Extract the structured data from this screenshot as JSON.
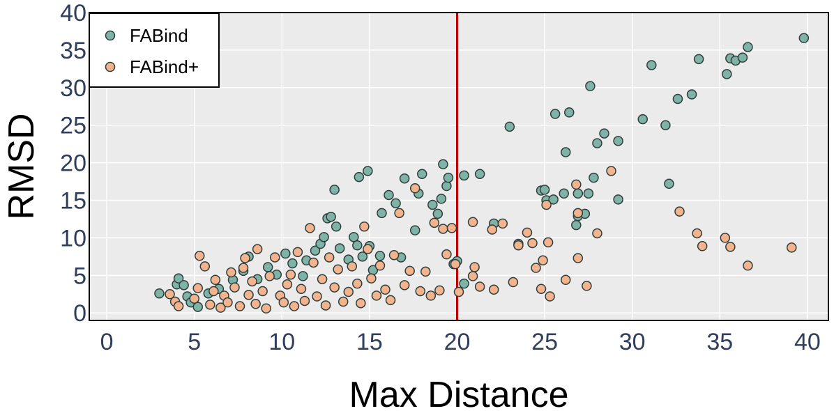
{
  "chart_data": {
    "type": "scatter",
    "xlabel": "Max Distance",
    "ylabel": "RMSD",
    "xlim": [
      -1,
      41.2
    ],
    "ylim": [
      -1,
      40
    ],
    "xticks": [
      0,
      5,
      10,
      15,
      20,
      25,
      30,
      35,
      40
    ],
    "yticks": [
      0,
      5,
      10,
      15,
      20,
      25,
      30,
      35,
      40
    ],
    "grid": true,
    "legend_position": "top-left",
    "vline": {
      "x": 20,
      "color": "#c00000"
    },
    "series": [
      {
        "name": "FABind",
        "color": "#7fb3a7",
        "points": [
          [
            3,
            2.6
          ],
          [
            4,
            3.8
          ],
          [
            4.1,
            4.6
          ],
          [
            4.4,
            3.7
          ],
          [
            4.6,
            2.2
          ],
          [
            4.8,
            1.4
          ],
          [
            5.2,
            0.8
          ],
          [
            5.8,
            2.6
          ],
          [
            6.4,
            3.2
          ],
          [
            7.2,
            4.4
          ],
          [
            7.8,
            5.6
          ],
          [
            8.1,
            7.5
          ],
          [
            8.6,
            4.5
          ],
          [
            9.2,
            6.1
          ],
          [
            9.7,
            5.1
          ],
          [
            10.2,
            7.9
          ],
          [
            10.6,
            6.6
          ],
          [
            11.2,
            4.9
          ],
          [
            11.4,
            7.0
          ],
          [
            11.9,
            8.3
          ],
          [
            12.2,
            9.2
          ],
          [
            12.4,
            10.1
          ],
          [
            12.6,
            12.6
          ],
          [
            12.8,
            12.8
          ],
          [
            13.1,
            11.5
          ],
          [
            13.3,
            8.6
          ],
          [
            13.8,
            7.1
          ],
          [
            14.1,
            10.1
          ],
          [
            14.3,
            9.0
          ],
          [
            14.6,
            7.5
          ],
          [
            15.0,
            8.9
          ],
          [
            15.2,
            5.7
          ],
          [
            15.6,
            7.6
          ],
          [
            13.0,
            16.4
          ],
          [
            14.4,
            18.1
          ],
          [
            14.9,
            18.9
          ],
          [
            15.7,
            13.3
          ],
          [
            16.1,
            15.7
          ],
          [
            16.5,
            14.6
          ],
          [
            16.8,
            7.4
          ],
          [
            17.0,
            17.9
          ],
          [
            17.6,
            11.0
          ],
          [
            17.8,
            15.9
          ],
          [
            18.0,
            18.5
          ],
          [
            18.6,
            14.4
          ],
          [
            18.9,
            13.2
          ],
          [
            19.1,
            15.2
          ],
          [
            19.2,
            19.8
          ],
          [
            19.4,
            16.9
          ],
          [
            19.5,
            18.0
          ],
          [
            19.8,
            6.5
          ],
          [
            20.4,
            3.9
          ],
          [
            20.0,
            6.9
          ],
          [
            20.4,
            18.3
          ],
          [
            21.3,
            18.5
          ],
          [
            22.1,
            11.9
          ],
          [
            23.0,
            24.8
          ],
          [
            23.5,
            9.2
          ],
          [
            24.8,
            16.3
          ],
          [
            25.0,
            16.4
          ],
          [
            25.1,
            15.0
          ],
          [
            25.5,
            15.1
          ],
          [
            25.6,
            26.5
          ],
          [
            26.1,
            15.9
          ],
          [
            26.2,
            21.4
          ],
          [
            26.4,
            26.7
          ],
          [
            26.9,
            12.9
          ],
          [
            26.8,
            11.7
          ],
          [
            26.9,
            15.9
          ],
          [
            27.3,
            13.2
          ],
          [
            27.5,
            15.9
          ],
          [
            27.6,
            30.2
          ],
          [
            27.8,
            18.0
          ],
          [
            28.0,
            22.6
          ],
          [
            28.4,
            23.9
          ],
          [
            29.2,
            22.9
          ],
          [
            29.2,
            15.1
          ],
          [
            30.6,
            25.8
          ],
          [
            31.1,
            33.0
          ],
          [
            31.9,
            25.0
          ],
          [
            32.1,
            17.2
          ],
          [
            32.6,
            28.5
          ],
          [
            33.4,
            29.1
          ],
          [
            33.8,
            33.8
          ],
          [
            35.4,
            31.8
          ],
          [
            35.6,
            33.9
          ],
          [
            35.9,
            33.6
          ],
          [
            36.3,
            34.0
          ],
          [
            36.6,
            35.4
          ],
          [
            39.8,
            36.6
          ]
        ]
      },
      {
        "name": "FABind+",
        "color": "#f2b48e",
        "points": [
          [
            3.6,
            2.5
          ],
          [
            3.9,
            1.5
          ],
          [
            4.1,
            0.9
          ],
          [
            5.0,
            1.9
          ],
          [
            5.2,
            3.3
          ],
          [
            5.3,
            7.6
          ],
          [
            5.6,
            6.2
          ],
          [
            5.9,
            1.1
          ],
          [
            6.1,
            2.9
          ],
          [
            6.2,
            4.4
          ],
          [
            6.5,
            0.7
          ],
          [
            6.7,
            2.3
          ],
          [
            6.9,
            1.4
          ],
          [
            7.1,
            5.4
          ],
          [
            7.3,
            3.4
          ],
          [
            7.6,
            0.9
          ],
          [
            7.8,
            6.0
          ],
          [
            7.9,
            7.3
          ],
          [
            8.1,
            2.4
          ],
          [
            8.3,
            4.2
          ],
          [
            8.5,
            1.2
          ],
          [
            8.6,
            8.5
          ],
          [
            8.9,
            2.9
          ],
          [
            9.1,
            0.6
          ],
          [
            9.3,
            4.9
          ],
          [
            9.6,
            7.4
          ],
          [
            9.9,
            2.3
          ],
          [
            10.1,
            1.4
          ],
          [
            10.3,
            3.8
          ],
          [
            10.5,
            5.1
          ],
          [
            10.7,
            0.9
          ],
          [
            10.9,
            8.1
          ],
          [
            11.1,
            3.2
          ],
          [
            11.3,
            1.6
          ],
          [
            11.6,
            11.3
          ],
          [
            11.8,
            6.7
          ],
          [
            12.0,
            2.2
          ],
          [
            12.3,
            4.5
          ],
          [
            12.5,
            1.0
          ],
          [
            12.7,
            7.4
          ],
          [
            13.0,
            3.4
          ],
          [
            13.2,
            5.8
          ],
          [
            13.5,
            1.5
          ],
          [
            13.8,
            2.8
          ],
          [
            14.0,
            6.2
          ],
          [
            14.3,
            3.9
          ],
          [
            14.5,
            1.3
          ],
          [
            14.7,
            11.5
          ],
          [
            14.9,
            8.5
          ],
          [
            15.1,
            4.6
          ],
          [
            15.4,
            2.3
          ],
          [
            15.6,
            6.3
          ],
          [
            15.9,
            3.1
          ],
          [
            16.2,
            1.7
          ],
          [
            16.4,
            7.7
          ],
          [
            16.7,
            13.3
          ],
          [
            17.0,
            3.7
          ],
          [
            17.3,
            5.6
          ],
          [
            17.6,
            16.6
          ],
          [
            17.9,
            2.9
          ],
          [
            18.2,
            5.5
          ],
          [
            18.5,
            2.3
          ],
          [
            18.7,
            12.0
          ],
          [
            19.0,
            3.0
          ],
          [
            19.2,
            11.2
          ],
          [
            19.4,
            7.8
          ],
          [
            19.7,
            11.3
          ],
          [
            19.9,
            6.5
          ],
          [
            20.1,
            2.8
          ],
          [
            20.9,
            4.9
          ],
          [
            20.9,
            12.1
          ],
          [
            21.0,
            6.1
          ],
          [
            21.3,
            3.5
          ],
          [
            22.0,
            11.1
          ],
          [
            22.1,
            3.1
          ],
          [
            22.6,
            11.9
          ],
          [
            23.2,
            4.1
          ],
          [
            23.5,
            9.0
          ],
          [
            24.0,
            10.7
          ],
          [
            24.3,
            9.3
          ],
          [
            24.5,
            6.0
          ],
          [
            24.8,
            3.2
          ],
          [
            24.9,
            7.0
          ],
          [
            25.2,
            9.4
          ],
          [
            25.1,
            14.4
          ],
          [
            25.3,
            2.2
          ],
          [
            26.2,
            4.4
          ],
          [
            26.8,
            17.1
          ],
          [
            26.9,
            7.3
          ],
          [
            26.9,
            13.3
          ],
          [
            27.4,
            3.6
          ],
          [
            28.0,
            10.6
          ],
          [
            28.8,
            18.9
          ],
          [
            32.7,
            13.5
          ],
          [
            33.7,
            10.6
          ],
          [
            34.0,
            8.9
          ],
          [
            35.3,
            10.0
          ],
          [
            35.6,
            8.8
          ],
          [
            36.6,
            6.3
          ],
          [
            39.1,
            8.7
          ]
        ]
      }
    ]
  }
}
